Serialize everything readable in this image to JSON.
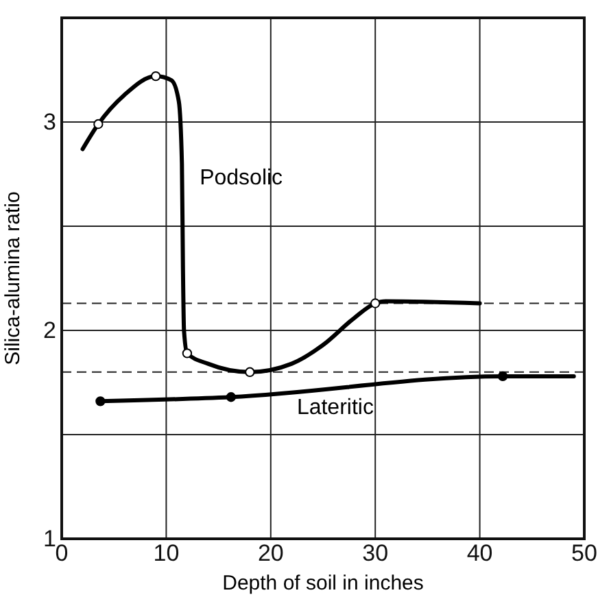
{
  "chart_data": {
    "type": "line",
    "xlabel": "Depth of soil in inches",
    "ylabel": "Silica-alumina ratio",
    "xlim": [
      0,
      50
    ],
    "xticks": [
      0,
      10,
      20,
      30,
      40,
      50
    ],
    "ylim": [
      1,
      3.5
    ],
    "yticks": [
      1,
      {
        "value": 1.5,
        "label": null
      },
      2,
      {
        "value": 2.5,
        "label": null
      },
      3
    ],
    "grid": true,
    "marker": "none",
    "line_style": "solid",
    "ref_lines": [
      {
        "axis": "y",
        "value": 2.13,
        "line_style": "dashed"
      },
      {
        "axis": "y",
        "value": 1.8,
        "line_style": "dashed"
      }
    ],
    "series": [
      {
        "name": "Podsolic",
        "color": "#000000",
        "x": [
          2,
          3.5,
          6,
          9,
          10.5,
          11.2,
          11.5,
          11.6,
          11.7,
          12,
          14,
          18,
          22,
          25,
          28,
          30,
          31,
          40
        ],
        "values": [
          2.87,
          2.99,
          3.13,
          3.22,
          3.2,
          3.1,
          2.8,
          2.3,
          2.0,
          1.89,
          1.84,
          1.8,
          1.84,
          1.93,
          2.06,
          2.13,
          2.14,
          2.13
        ]
      },
      {
        "name": "Lateritic",
        "color": "#000000",
        "x": [
          3.7,
          16.2,
          42.2,
          49
        ],
        "values": [
          1.66,
          1.68,
          1.78,
          1.78
        ]
      },
      {
        "type": "scatter",
        "marker": "circle",
        "color": "#ffffff",
        "x": [
          3.5,
          9,
          12,
          18,
          30
        ],
        "values": [
          2.99,
          3.22,
          1.89,
          1.8,
          2.13
        ]
      },
      {
        "type": "scatter",
        "marker": "circle",
        "color": "#000000",
        "x": [
          3.7,
          16.2,
          42.2
        ],
        "values": [
          1.66,
          1.68,
          1.78
        ]
      }
    ]
  }
}
